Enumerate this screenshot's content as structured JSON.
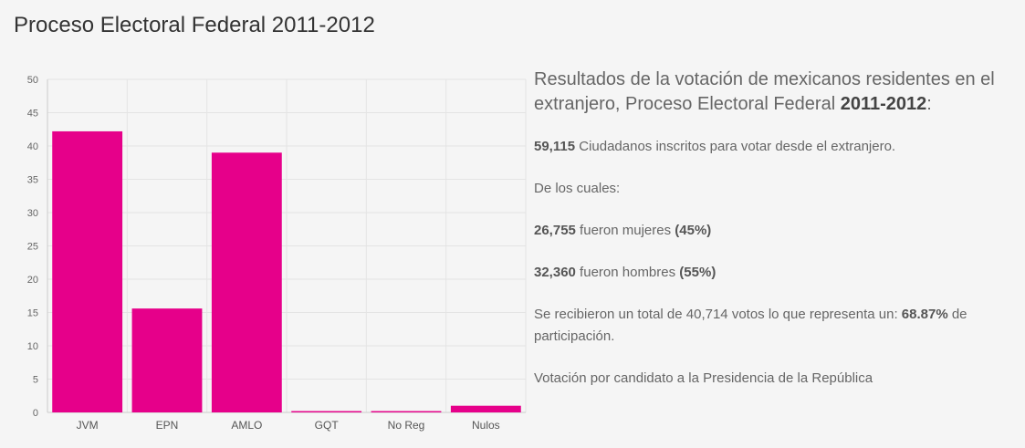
{
  "page_title": "Proceso Electoral Federal 2011-2012",
  "info": {
    "heading_prefix": "Resultados de la votación de mexicanos residentes en el extranjero, Proceso Electoral Federal ",
    "heading_bold": "2011-2012",
    "heading_suffix": ":",
    "registered_value": "59,115",
    "registered_text": " Ciudadanos inscritos para votar desde el extranjero.",
    "of_which": "De los cuales:",
    "women_value": "26,755",
    "women_text": " fueron mujeres ",
    "women_pct": "(45%)",
    "men_value": "32,360",
    "men_text": " fueron hombres ",
    "men_pct": "(55%)",
    "total_text": "Se recibieron un total de 40,714 votos lo que representa un: ",
    "total_pct": "68.87%",
    "total_suffix": " de participación.",
    "by_candidate": "Votación por candidato a la Presidencia de la República"
  },
  "colors": {
    "bar": "#e6008a",
    "grid": "#e4e4e4",
    "axis": "#cccccc"
  },
  "chart_data": {
    "type": "bar",
    "categories": [
      "JVM",
      "EPN",
      "AMLO",
      "GQT",
      "No Reg",
      "Nulos"
    ],
    "values": [
      42.2,
      15.6,
      39.0,
      0.2,
      0.2,
      1.0
    ],
    "ylim": [
      0,
      50
    ],
    "yticks": [
      0,
      5,
      10,
      15,
      20,
      25,
      30,
      35,
      40,
      45,
      50
    ],
    "grid": true,
    "xlabel": "",
    "ylabel": ""
  }
}
